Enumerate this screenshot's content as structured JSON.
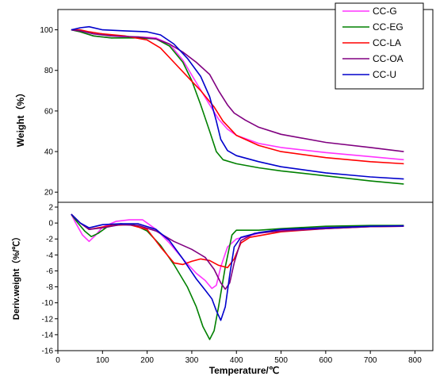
{
  "chart_data": {
    "type": "line",
    "xlabel": "Temperature/℃",
    "xlim": [
      0,
      840
    ],
    "xticks": [
      0,
      100,
      200,
      300,
      400,
      500,
      600,
      700,
      800
    ],
    "legend": {
      "placement": "top-right",
      "entries": [
        {
          "name": "CC-G",
          "color": "#ff33ff"
        },
        {
          "name": "CC-EG",
          "color": "#008000"
        },
        {
          "name": "CC-LA",
          "color": "#ff0000"
        },
        {
          "name": "CC-OA",
          "color": "#800080"
        },
        {
          "name": "CC-U",
          "color": "#0000cc"
        }
      ]
    },
    "panels": [
      {
        "id": "tg",
        "ylabel": "Weight（%）",
        "ylim": [
          15,
          110
        ],
        "yticks": [
          20,
          40,
          60,
          80,
          100
        ],
        "series": [
          {
            "name": "CC-G",
            "color": "#ff33ff",
            "points": [
              [
                30,
                100
              ],
              [
                50,
                99
              ],
              [
                80,
                97
              ],
              [
                120,
                96
              ],
              [
                180,
                96.5
              ],
              [
                220,
                96
              ],
              [
                250,
                93
              ],
              [
                280,
                85
              ],
              [
                310,
                74
              ],
              [
                340,
                63
              ],
              [
                360,
                56
              ],
              [
                380,
                51
              ],
              [
                400,
                48
              ],
              [
                450,
                44
              ],
              [
                500,
                42
              ],
              [
                600,
                39.5
              ],
              [
                700,
                37.5
              ],
              [
                775,
                36
              ]
            ]
          },
          {
            "name": "CC-EG",
            "color": "#008000",
            "points": [
              [
                30,
                100
              ],
              [
                50,
                99
              ],
              [
                80,
                97
              ],
              [
                120,
                96
              ],
              [
                180,
                96
              ],
              [
                220,
                95.5
              ],
              [
                250,
                92
              ],
              [
                280,
                84
              ],
              [
                300,
                75
              ],
              [
                320,
                63
              ],
              [
                340,
                50
              ],
              [
                355,
                40
              ],
              [
                370,
                36
              ],
              [
                400,
                34
              ],
              [
                450,
                32
              ],
              [
                500,
                30.5
              ],
              [
                600,
                28
              ],
              [
                700,
                25.5
              ],
              [
                775,
                24
              ]
            ]
          },
          {
            "name": "CC-LA",
            "color": "#ff0000",
            "points": [
              [
                30,
                100
              ],
              [
                50,
                100
              ],
              [
                70,
                99
              ],
              [
                100,
                98
              ],
              [
                150,
                97
              ],
              [
                200,
                95
              ],
              [
                230,
                91
              ],
              [
                260,
                84
              ],
              [
                290,
                77
              ],
              [
                320,
                70
              ],
              [
                350,
                62
              ],
              [
                370,
                55
              ],
              [
                400,
                48
              ],
              [
                450,
                43
              ],
              [
                500,
                40
              ],
              [
                600,
                37
              ],
              [
                700,
                35
              ],
              [
                775,
                34
              ]
            ]
          },
          {
            "name": "CC-OA",
            "color": "#800080",
            "points": [
              [
                30,
                100
              ],
              [
                50,
                99.5
              ],
              [
                80,
                98
              ],
              [
                120,
                97
              ],
              [
                180,
                96.5
              ],
              [
                220,
                95.5
              ],
              [
                250,
                93
              ],
              [
                280,
                89
              ],
              [
                310,
                84
              ],
              [
                340,
                78
              ],
              [
                360,
                70
              ],
              [
                380,
                63
              ],
              [
                395,
                59
              ],
              [
                420,
                55.5
              ],
              [
                450,
                52
              ],
              [
                500,
                48.5
              ],
              [
                600,
                44.5
              ],
              [
                700,
                42
              ],
              [
                775,
                40
              ]
            ]
          },
          {
            "name": "CC-U",
            "color": "#0000cc",
            "points": [
              [
                30,
                100
              ],
              [
                50,
                101
              ],
              [
                70,
                101.5
              ],
              [
                100,
                100
              ],
              [
                150,
                99.5
              ],
              [
                200,
                99
              ],
              [
                230,
                97.5
              ],
              [
                260,
                93
              ],
              [
                290,
                86
              ],
              [
                320,
                77
              ],
              [
                340,
                67
              ],
              [
                355,
                55
              ],
              [
                365,
                46
              ],
              [
                380,
                40.5
              ],
              [
                400,
                38
              ],
              [
                450,
                35
              ],
              [
                500,
                32.5
              ],
              [
                600,
                29.5
              ],
              [
                700,
                27.5
              ],
              [
                775,
                26.5
              ]
            ]
          }
        ]
      },
      {
        "id": "dtg",
        "ylabel": "Deriv.weight（%/℃）",
        "ylim": [
          -16,
          2.6
        ],
        "yticks": [
          -16,
          -14,
          -12,
          -10,
          -8,
          -6,
          -4,
          -2,
          0,
          2
        ],
        "series": [
          {
            "name": "CC-G",
            "color": "#ff33ff",
            "points": [
              [
                30,
                1.1
              ],
              [
                40,
                0
              ],
              [
                55,
                -1.5
              ],
              [
                70,
                -2.3
              ],
              [
                85,
                -1.5
              ],
              [
                100,
                -0.5
              ],
              [
                130,
                0.2
              ],
              [
                160,
                0.4
              ],
              [
                190,
                0.4
              ],
              [
                220,
                -0.8
              ],
              [
                250,
                -2.5
              ],
              [
                280,
                -4.5
              ],
              [
                310,
                -6.3
              ],
              [
                330,
                -7.2
              ],
              [
                345,
                -8.2
              ],
              [
                355,
                -7.8
              ],
              [
                365,
                -5.5
              ],
              [
                380,
                -3
              ],
              [
                400,
                -2
              ],
              [
                450,
                -1.3
              ],
              [
                500,
                -0.9
              ],
              [
                600,
                -0.5
              ],
              [
                700,
                -0.35
              ],
              [
                775,
                -0.3
              ]
            ]
          },
          {
            "name": "CC-EG",
            "color": "#008000",
            "points": [
              [
                30,
                1.1
              ],
              [
                45,
                0
              ],
              [
                60,
                -1
              ],
              [
                75,
                -1.7
              ],
              [
                90,
                -1.3
              ],
              [
                110,
                -0.5
              ],
              [
                140,
                -0.1
              ],
              [
                170,
                -0.2
              ],
              [
                200,
                -1
              ],
              [
                230,
                -2.8
              ],
              [
                260,
                -5.2
              ],
              [
                290,
                -8
              ],
              [
                310,
                -10.5
              ],
              [
                325,
                -13
              ],
              [
                340,
                -14.6
              ],
              [
                350,
                -13.5
              ],
              [
                360,
                -10.5
              ],
              [
                375,
                -5.5
              ],
              [
                390,
                -1.5
              ],
              [
                400,
                -0.9
              ],
              [
                450,
                -0.9
              ],
              [
                500,
                -0.7
              ],
              [
                600,
                -0.4
              ],
              [
                700,
                -0.3
              ],
              [
                775,
                -0.3
              ]
            ]
          },
          {
            "name": "CC-LA",
            "color": "#ff0000",
            "points": [
              [
                30,
                1.1
              ],
              [
                50,
                0
              ],
              [
                70,
                -0.8
              ],
              [
                90,
                -0.6
              ],
              [
                120,
                -0.3
              ],
              [
                160,
                -0.2
              ],
              [
                200,
                -0.8
              ],
              [
                230,
                -3
              ],
              [
                260,
                -5
              ],
              [
                280,
                -5.2
              ],
              [
                300,
                -4.8
              ],
              [
                320,
                -4.5
              ],
              [
                340,
                -4.7
              ],
              [
                360,
                -5.3
              ],
              [
                380,
                -5.6
              ],
              [
                395,
                -4.5
              ],
              [
                410,
                -2.5
              ],
              [
                430,
                -1.8
              ],
              [
                500,
                -1.1
              ],
              [
                600,
                -0.7
              ],
              [
                700,
                -0.45
              ],
              [
                775,
                -0.4
              ]
            ]
          },
          {
            "name": "CC-OA",
            "color": "#800080",
            "points": [
              [
                30,
                1.1
              ],
              [
                50,
                0
              ],
              [
                70,
                -0.8
              ],
              [
                100,
                -0.6
              ],
              [
                140,
                -0.2
              ],
              [
                180,
                -0.3
              ],
              [
                220,
                -1
              ],
              [
                260,
                -2.3
              ],
              [
                300,
                -3.3
              ],
              [
                330,
                -4.3
              ],
              [
                350,
                -5.8
              ],
              [
                365,
                -7.5
              ],
              [
                375,
                -8.3
              ],
              [
                385,
                -7.5
              ],
              [
                395,
                -5
              ],
              [
                410,
                -2.2
              ],
              [
                440,
                -1.3
              ],
              [
                500,
                -1
              ],
              [
                600,
                -0.7
              ],
              [
                700,
                -0.45
              ],
              [
                775,
                -0.4
              ]
            ]
          },
          {
            "name": "CC-U",
            "color": "#0000cc",
            "points": [
              [
                30,
                1.1
              ],
              [
                50,
                0
              ],
              [
                70,
                -0.6
              ],
              [
                100,
                -0.2
              ],
              [
                140,
                -0.1
              ],
              [
                180,
                -0.1
              ],
              [
                220,
                -0.8
              ],
              [
                250,
                -2.2
              ],
              [
                280,
                -4.5
              ],
              [
                310,
                -7
              ],
              [
                330,
                -8.4
              ],
              [
                345,
                -9.5
              ],
              [
                355,
                -11
              ],
              [
                365,
                -12.2
              ],
              [
                375,
                -10.5
              ],
              [
                385,
                -6.5
              ],
              [
                395,
                -3
              ],
              [
                410,
                -1.8
              ],
              [
                450,
                -1.2
              ],
              [
                500,
                -0.8
              ],
              [
                600,
                -0.6
              ],
              [
                700,
                -0.4
              ],
              [
                775,
                -0.35
              ]
            ]
          }
        ]
      }
    ]
  }
}
